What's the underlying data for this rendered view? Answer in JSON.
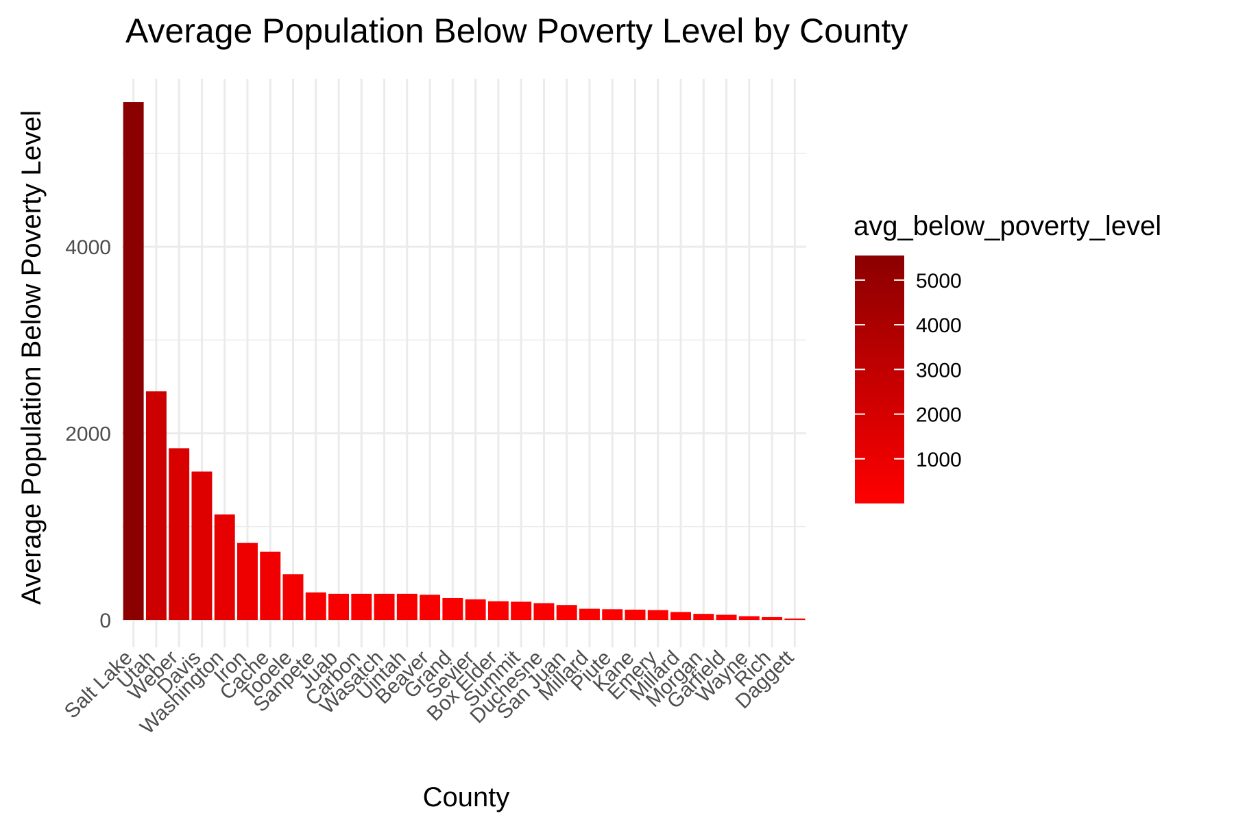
{
  "chart_data": {
    "type": "bar",
    "title": "Average Population Below Poverty Level by County",
    "xlabel": "County",
    "ylabel": "Average Population Below Poverty Level",
    "categories": [
      "Salt Lake",
      "Utah",
      "Weber",
      "Davis",
      "Washington",
      "Iron",
      "Cache",
      "Tooele",
      "Sanpete",
      "Juab",
      "Carbon",
      "Wasatch",
      "Uintah",
      "Beaver",
      "Grand",
      "Sevier",
      "Box Elder",
      "Summit",
      "Duchesne",
      "San Juan",
      "Millard",
      "Piute",
      "Kane",
      "Emery",
      "Millard",
      "Morgan",
      "Garfield",
      "Wayne",
      "Rich",
      "Daggett"
    ],
    "values": [
      5550,
      2450,
      1840,
      1590,
      1130,
      825,
      730,
      490,
      295,
      280,
      280,
      280,
      280,
      270,
      235,
      220,
      200,
      195,
      180,
      160,
      120,
      115,
      110,
      105,
      85,
      65,
      55,
      40,
      30,
      15
    ],
    "ylim": [
      0,
      5800
    ],
    "yticks": [
      0,
      2000,
      4000
    ],
    "grid": true,
    "color_scale": {
      "low": "#ff0000",
      "high": "#8b0000",
      "domain": [
        0,
        5550
      ]
    },
    "legend": {
      "title": "avg_below_poverty_level",
      "placement": "right",
      "ticks": [
        1000,
        2000,
        3000,
        4000,
        5000
      ],
      "tick_labels": [
        "1000",
        "2000",
        "3000",
        "4000",
        "5000"
      ]
    }
  }
}
